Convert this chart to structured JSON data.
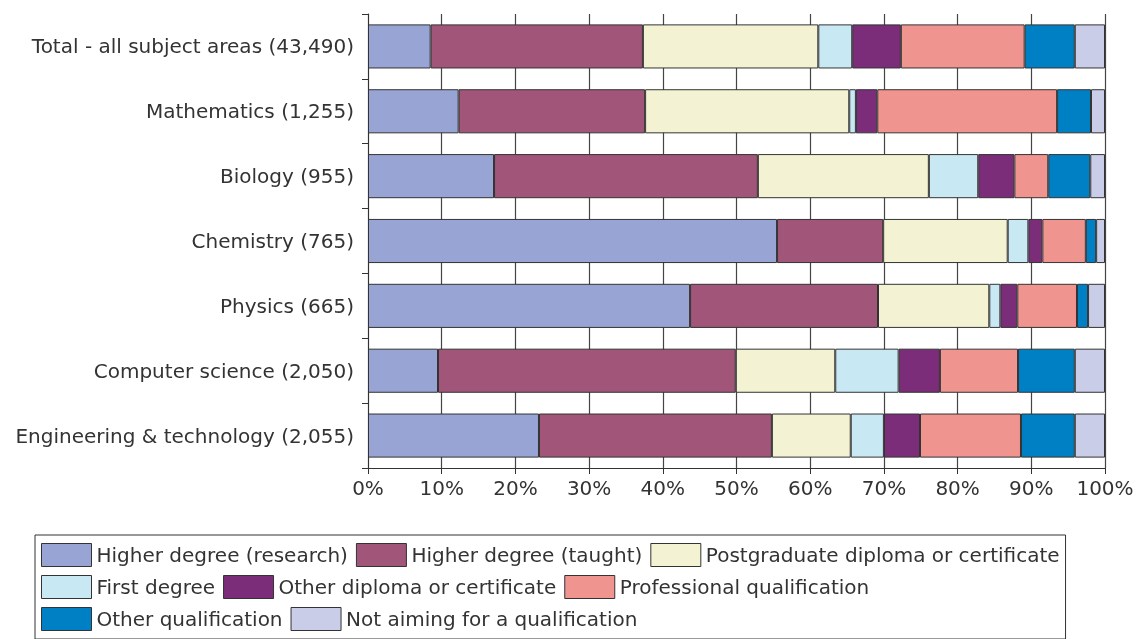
{
  "chart_data": {
    "type": "bar",
    "orientation": "horizontal",
    "stacked": true,
    "categories": [
      "Total - all subject areas (43,490)",
      "Mathematics (1,255)",
      "Biology (955)",
      "Chemistry (765)",
      "Physics (665)",
      "Computer science (2,050)",
      "Engineering & technology (2,055)"
    ],
    "series": [
      {
        "name": "Higher degree (research)",
        "color": "#98a4d3",
        "values": [
          8.5,
          12.3,
          17.1,
          55.5,
          43.7,
          9.5,
          23.2
        ]
      },
      {
        "name": "Higher degree (taught)",
        "color": "#a05579",
        "values": [
          28.8,
          25.3,
          35.8,
          14.4,
          25.5,
          40.4,
          31.6
        ]
      },
      {
        "name": "Postgraduate diploma or certificate",
        "color": "#f3f2d2",
        "values": [
          23.8,
          27.7,
          23.2,
          16.9,
          15.1,
          13.5,
          10.7
        ]
      },
      {
        "name": "First degree",
        "color": "#c8e8f4",
        "values": [
          4.6,
          0.9,
          6.7,
          2.8,
          1.5,
          8.6,
          4.5
        ]
      },
      {
        "name": "Other diploma or certificate",
        "color": "#7b2d7a",
        "values": [
          6.6,
          2.9,
          4.9,
          1.9,
          2.3,
          5.6,
          4.9
        ]
      },
      {
        "name": "Professional qualification",
        "color": "#f09490",
        "values": [
          16.8,
          24.4,
          4.6,
          5.9,
          8.1,
          10.6,
          13.7
        ]
      },
      {
        "name": "Other qualification",
        "color": "#0080c4",
        "values": [
          6.8,
          4.6,
          5.7,
          1.4,
          1.5,
          7.7,
          7.3
        ]
      },
      {
        "name": "Not aiming for a qualification",
        "color": "#c9cde8",
        "values": [
          4.1,
          1.9,
          2.0,
          1.2,
          2.3,
          4.1,
          4.1
        ]
      }
    ],
    "xlim": [
      0,
      100
    ],
    "xticks": [
      {
        "value": 0,
        "label": "0%"
      },
      {
        "value": 10,
        "label": "10%"
      },
      {
        "value": 20,
        "label": "20%"
      },
      {
        "value": 30,
        "label": "30%"
      },
      {
        "value": 40,
        "label": "40%"
      },
      {
        "value": 50,
        "label": "50%"
      },
      {
        "value": 60,
        "label": "60%"
      },
      {
        "value": 70,
        "label": "70%"
      },
      {
        "value": 80,
        "label": "80%"
      },
      {
        "value": 90,
        "label": "90%"
      },
      {
        "value": 100,
        "label": "100%"
      }
    ],
    "grid": "x",
    "legend": "bottom"
  }
}
